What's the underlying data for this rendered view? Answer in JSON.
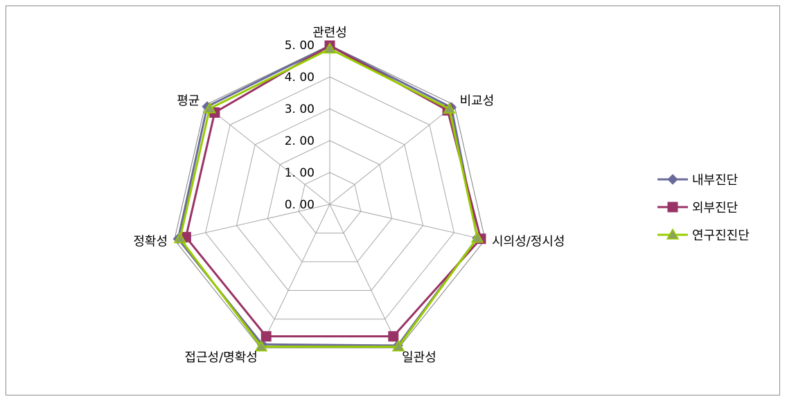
{
  "chart_data": {
    "type": "radar",
    "title": "",
    "categories": [
      "관련성",
      "비교성",
      "시의성/정시성",
      "일관성",
      "접근성/명확성",
      "정확성",
      "평균"
    ],
    "ticks": [
      "0. 00",
      "1. 00",
      "2. 00",
      "3. 00",
      "4. 00",
      "5. 00"
    ],
    "range": [
      0,
      5
    ],
    "grid": true,
    "legend_position": "right",
    "series": [
      {
        "name": "내부진단",
        "color": "#6b6b9b",
        "marker": "diamond",
        "values": [
          4.98,
          4.88,
          4.75,
          4.92,
          4.88,
          4.88,
          4.92
        ]
      },
      {
        "name": "외부진단",
        "color": "#993366",
        "marker": "square",
        "values": [
          4.98,
          4.73,
          4.86,
          4.6,
          4.6,
          4.63,
          4.62
        ]
      },
      {
        "name": "연구진진단",
        "color": "#99cc00",
        "marker": "triangle",
        "values": [
          4.88,
          4.8,
          4.75,
          4.96,
          4.96,
          4.82,
          4.82
        ]
      }
    ]
  }
}
